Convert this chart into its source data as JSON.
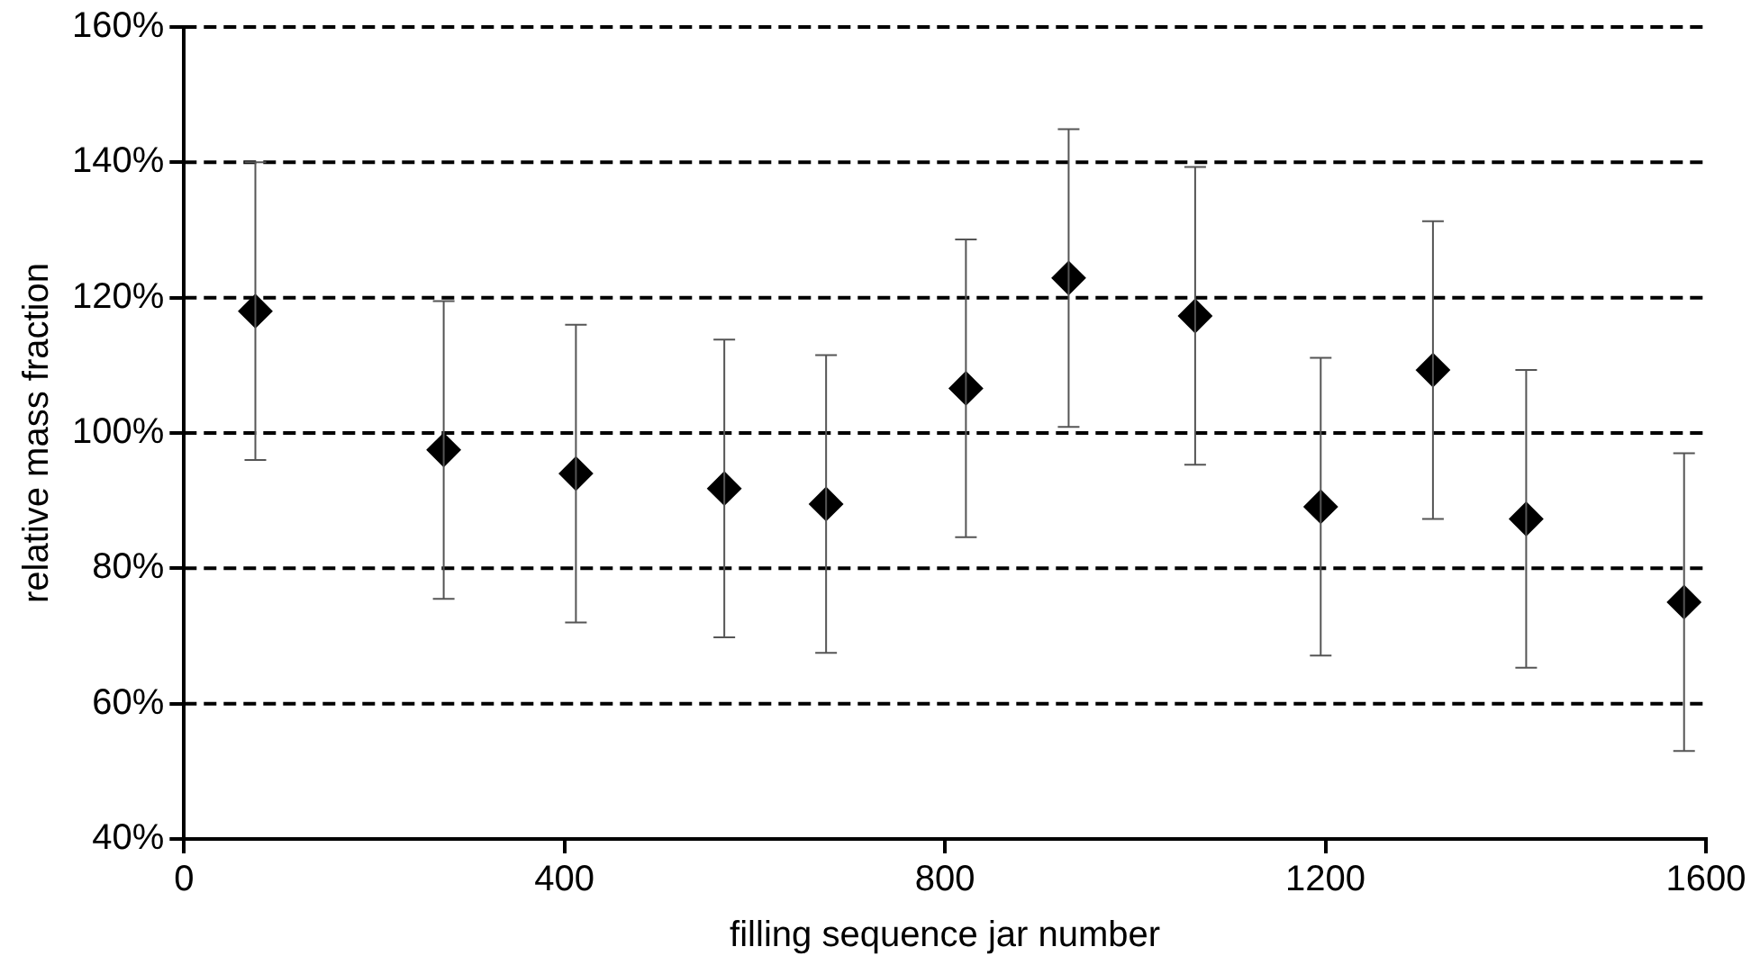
{
  "chart_data": {
    "type": "scatter",
    "xlabel": "filling sequence jar number",
    "ylabel": "relative mass fraction",
    "x": [
      75,
      273,
      412,
      568,
      675,
      822,
      930,
      1063,
      1195,
      1313,
      1411,
      1577
    ],
    "values": [
      118,
      97.5,
      94,
      91.8,
      89.5,
      106.6,
      122.9,
      117.3,
      89.1,
      109.3,
      87.3,
      75
    ],
    "errors": [
      22,
      22,
      22,
      22,
      22,
      22,
      22,
      22,
      22,
      22,
      22,
      22
    ],
    "color": "#000000",
    "marker": "diamond",
    "xlim": [
      0,
      1600
    ],
    "xticks": [
      0,
      400,
      800,
      1200,
      1600
    ],
    "ylim": [
      40,
      160
    ],
    "yticks": [
      {
        "value": 40,
        "label": "40%"
      },
      {
        "value": 60,
        "label": "60%"
      },
      {
        "value": 80,
        "label": "80%"
      },
      {
        "value": 100,
        "label": "100%"
      },
      {
        "value": 120,
        "label": "120%"
      },
      {
        "value": 140,
        "label": "140%"
      },
      {
        "value": 160,
        "label": "160%"
      }
    ],
    "grid": "y",
    "legend": false
  }
}
